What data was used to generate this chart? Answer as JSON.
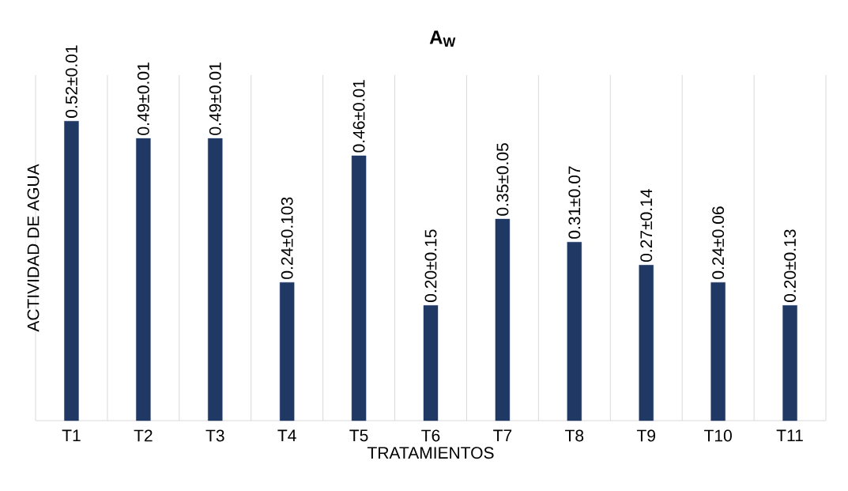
{
  "chart_data": {
    "type": "bar",
    "title": "A$_{W}$",
    "xlabel": "TRATAMIENTOS",
    "ylabel": "ACTIVIDAD DE AGUA",
    "categories": [
      "T1",
      "T2",
      "T3",
      "T4",
      "T5",
      "T6",
      "T7",
      "T8",
      "T9",
      "T10",
      "T11"
    ],
    "values": [
      0.52,
      0.49,
      0.49,
      0.24,
      0.46,
      0.2,
      0.35,
      0.31,
      0.27,
      0.24,
      0.2
    ],
    "value_labels": [
      "0.52±0.01",
      "0.49±0.01",
      "0.49±0.01",
      "0.24±0.103",
      "0.46±0.01",
      "0.20±0.15",
      "0.35±0.05",
      "0.31±0.07",
      "0.27±0.14",
      "0.24±0.06",
      "0.20±0.13"
    ],
    "color": "#1f3864",
    "ylim": [
      0,
      0.6
    ],
    "grid": "x"
  }
}
